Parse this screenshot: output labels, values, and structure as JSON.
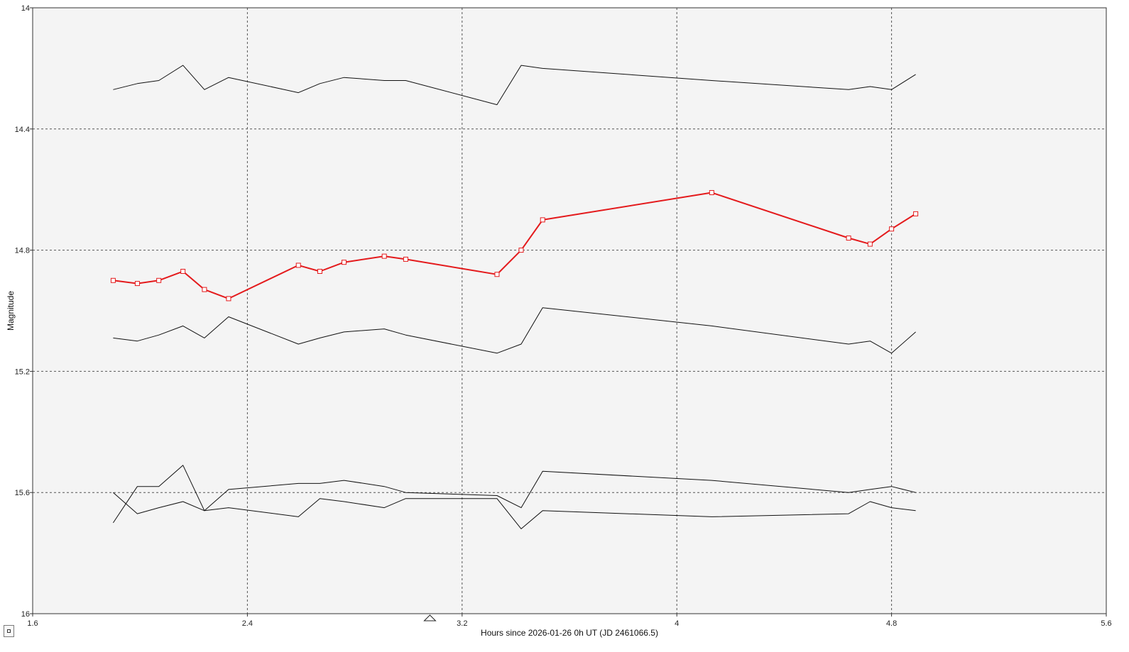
{
  "chart_data": {
    "type": "line",
    "title": "",
    "xlabel": "Hours since 2026-01-26 0h UT (JD 2461066.5)",
    "ylabel": "Magnitude",
    "xlim": [
      1.6,
      5.6
    ],
    "ylim": [
      14.0,
      16.0
    ],
    "y_inverted": true,
    "grid": true,
    "x_ticks": [
      1.6,
      2.4,
      3.2,
      4,
      4.8,
      5.6
    ],
    "y_ticks": [
      14,
      14.4,
      14.8,
      15.2,
      15.6,
      16
    ],
    "x_tick_labels": [
      "1.6",
      "2.4",
      "3.2",
      "4",
      "4.8",
      "5.6"
    ],
    "y_tick_labels": [
      "14",
      "14.4",
      "14.8",
      "15.2",
      "15.6",
      "16"
    ],
    "marker_x": 3.08,
    "colors": {
      "target": "#e41a1c",
      "comparison": "#111111",
      "plot_bg": "#f4f4f4",
      "grid": "#555555"
    },
    "series": [
      {
        "role": "target",
        "x": [
          1.9,
          1.99,
          2.07,
          2.16,
          2.24,
          2.33,
          2.59,
          2.67,
          2.76,
          2.91,
          2.99,
          3.33,
          3.42,
          3.5,
          4.13,
          4.64,
          4.72,
          4.8,
          4.89
        ],
        "y": [
          14.9,
          14.91,
          14.9,
          14.87,
          14.93,
          14.96,
          14.85,
          14.87,
          14.84,
          14.82,
          14.83,
          14.88,
          14.8,
          14.7,
          14.61,
          14.76,
          14.78,
          14.73,
          14.68
        ],
        "marker": "square"
      },
      {
        "role": "comparison",
        "x": [
          1.9,
          1.99,
          2.07,
          2.16,
          2.24,
          2.33,
          2.59,
          2.67,
          2.76,
          2.91,
          2.99,
          3.33,
          3.42,
          3.5,
          4.13,
          4.64,
          4.72,
          4.8,
          4.89
        ],
        "y": [
          14.27,
          14.25,
          14.24,
          14.19,
          14.27,
          14.23,
          14.28,
          14.25,
          14.23,
          14.24,
          14.24,
          14.32,
          14.19,
          14.2,
          14.24,
          14.27,
          14.26,
          14.27,
          14.22
        ]
      },
      {
        "role": "comparison",
        "x": [
          1.9,
          1.99,
          2.07,
          2.16,
          2.24,
          2.33,
          2.59,
          2.67,
          2.76,
          2.91,
          2.99,
          3.33,
          3.42,
          3.5,
          4.13,
          4.64,
          4.72,
          4.8,
          4.89
        ],
        "y": [
          15.09,
          15.1,
          15.08,
          15.05,
          15.09,
          15.02,
          15.11,
          15.09,
          15.07,
          15.06,
          15.08,
          15.14,
          15.11,
          14.99,
          15.05,
          15.11,
          15.1,
          15.14,
          15.07
        ]
      },
      {
        "role": "comparison",
        "x": [
          1.9,
          1.99,
          2.07,
          2.16,
          2.24,
          2.33,
          2.59,
          2.67,
          2.76,
          2.91,
          2.99,
          3.33,
          3.42,
          3.5,
          4.13,
          4.64,
          4.72,
          4.8,
          4.89
        ],
        "y": [
          15.7,
          15.58,
          15.58,
          15.51,
          15.66,
          15.59,
          15.57,
          15.57,
          15.56,
          15.58,
          15.6,
          15.61,
          15.65,
          15.53,
          15.56,
          15.6,
          15.59,
          15.58,
          15.6
        ]
      },
      {
        "role": "comparison",
        "x": [
          1.9,
          1.99,
          2.07,
          2.16,
          2.24,
          2.33,
          2.59,
          2.67,
          2.76,
          2.91,
          2.99,
          3.33,
          3.42,
          3.5,
          4.13,
          4.64,
          4.72,
          4.8,
          4.89
        ],
        "y": [
          15.6,
          15.67,
          15.65,
          15.63,
          15.66,
          15.65,
          15.68,
          15.62,
          15.63,
          15.65,
          15.62,
          15.62,
          15.72,
          15.66,
          15.68,
          15.67,
          15.63,
          15.65,
          15.66
        ]
      }
    ]
  }
}
